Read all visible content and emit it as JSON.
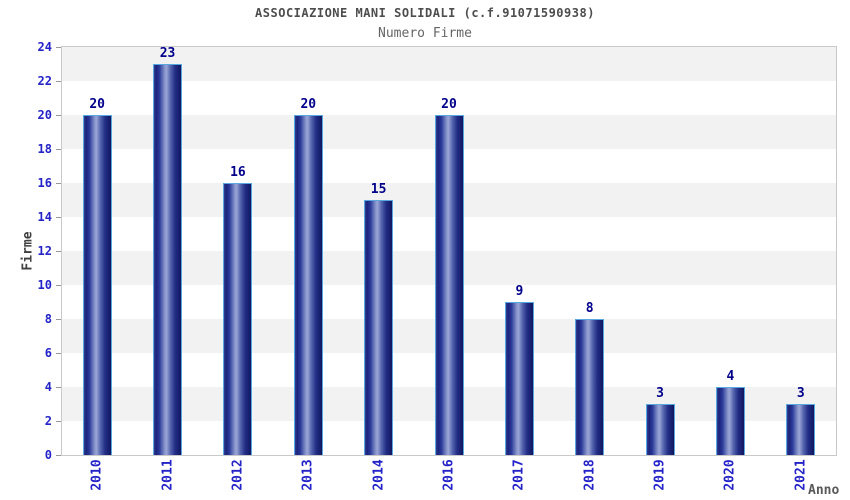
{
  "chart_data": {
    "type": "bar",
    "title": "ASSOCIAZIONE MANI SOLIDALI (c.f.91071590938)",
    "subtitle": "Numero Firme",
    "xlabel": "Anno",
    "ylabel": "Firme",
    "categories": [
      "2010",
      "2011",
      "2012",
      "2013",
      "2014",
      "2016",
      "2017",
      "2018",
      "2019",
      "2020",
      "2021"
    ],
    "values": [
      20,
      23,
      16,
      20,
      15,
      20,
      9,
      8,
      3,
      4,
      3
    ],
    "ylim": [
      0,
      24
    ],
    "ytick_step": 2,
    "grid": "alternating-horizontal-bands",
    "legend": null
  },
  "colors": {
    "title": "#4d4d4d",
    "subtitle": "#666666",
    "axis_tick_label": "#2323c8",
    "bar_value_label": "#00008b",
    "ylabel": "#404040",
    "xlabel": "#595959",
    "band_shaded": "#f2f2f2",
    "band_plain": "#ffffff",
    "plot_border": "#c9c9c9",
    "tick_mark": "#999999",
    "bar_border": "#58a8e0",
    "bar_gradient": [
      "#323f96",
      "#1b2478",
      "#2a3a9a",
      "#8a96cc",
      "#9aa6d6",
      "#5868b0",
      "#222e86",
      "#11175e"
    ]
  }
}
